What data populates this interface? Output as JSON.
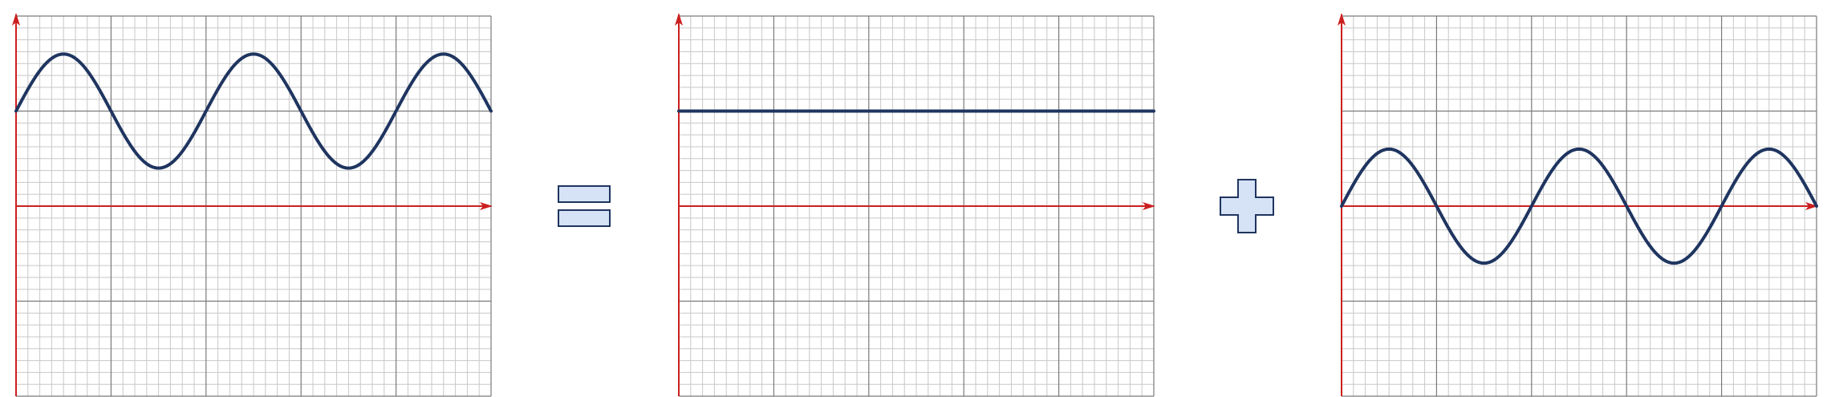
{
  "colors": {
    "background": "#ffffff",
    "grid_fine": "#c8c8c8",
    "grid_major": "#7a7a7a",
    "axis": "#cc1f1f",
    "curve": "#1f3560",
    "operator_fill": "#d6e2f5",
    "operator_stroke": "#1f3560"
  },
  "operators": {
    "first": "equals-sign",
    "second": "plus-sign"
  },
  "chart_data": [
    {
      "type": "line",
      "name": "combined-wave",
      "function": "offset_sine",
      "offset": 1,
      "amplitude": 0.6,
      "cycles": 2.5,
      "grid": true,
      "ylim": [
        -2,
        2
      ]
    },
    {
      "type": "line",
      "name": "constant-level",
      "function": "constant",
      "offset": 1,
      "amplitude": 0,
      "cycles": 0,
      "grid": true,
      "ylim": [
        -2,
        2
      ]
    },
    {
      "type": "line",
      "name": "sine-wave",
      "function": "sine",
      "offset": 0,
      "amplitude": 0.6,
      "cycles": 2.5,
      "grid": true,
      "ylim": [
        -2,
        2
      ]
    }
  ]
}
